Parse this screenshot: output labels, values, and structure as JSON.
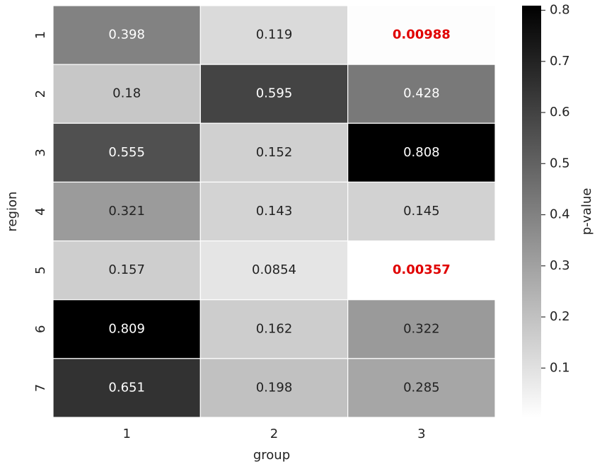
{
  "chart_data": {
    "type": "heatmap",
    "x_categories": [
      "1",
      "2",
      "3"
    ],
    "y_categories": [
      "1",
      "2",
      "3",
      "4",
      "5",
      "6",
      "7"
    ],
    "values": [
      [
        0.398,
        0.119,
        0.00988
      ],
      [
        0.18,
        0.595,
        0.428
      ],
      [
        0.555,
        0.152,
        0.808
      ],
      [
        0.321,
        0.143,
        0.145
      ],
      [
        0.157,
        0.0854,
        0.00357
      ],
      [
        0.809,
        0.162,
        0.322
      ],
      [
        0.651,
        0.198,
        0.285
      ]
    ],
    "xlabel": "group",
    "ylabel": "region",
    "colorbar_label": "p-value",
    "colorbar_lim": [
      0.00357,
      0.809
    ],
    "colorbar_ticks": [
      0.1,
      0.2,
      0.3,
      0.4,
      0.5,
      0.6,
      0.7,
      0.8
    ],
    "colormap": [
      "#ffffff",
      "#000000"
    ],
    "highlight": {
      "below": 0.01,
      "color": "#e00000"
    }
  }
}
